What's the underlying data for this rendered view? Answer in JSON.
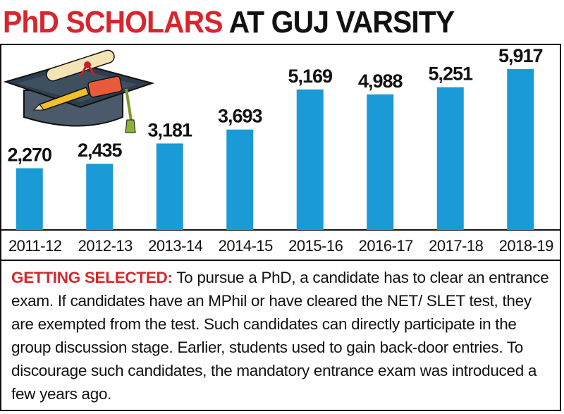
{
  "title": {
    "part1": "PhD SCHOLARS",
    "part2": "AT GUJ VARSITY"
  },
  "colors": {
    "bar": "#1a9ad6",
    "title_red": "#d7262d",
    "text": "#111111"
  },
  "chart_data": {
    "type": "bar",
    "title": "PhD SCHOLARS AT GUJ VARSITY",
    "categories": [
      "2011-12",
      "2012-13",
      "2013-14",
      "2014-15",
      "2015-16",
      "2016-17",
      "2017-18",
      "2018-19"
    ],
    "values": [
      2270,
      2435,
      3181,
      3693,
      5169,
      4988,
      5251,
      5917
    ],
    "value_labels": [
      "2,270",
      "2,435",
      "3,181",
      "3,693",
      "5,169",
      "4,988",
      "5,251",
      "5,917"
    ],
    "xlabel": "",
    "ylabel": "",
    "grid": false,
    "legend": "none"
  },
  "icon": {
    "name": "graduation-cap-diploma-icon"
  },
  "note": {
    "lead": "GETTING SELECTED:",
    "body": " To pursue a PhD, a candidate has to clear an entrance exam. If candidates have an MPhil or have cleared the NET/ SLET test, they are exempted from the test. Such candidates can directly participate in the group discussion stage. Earlier, students used to gain back-door entries. To discourage such candidates, the mandatory entrance exam was introduced a few years ago."
  }
}
